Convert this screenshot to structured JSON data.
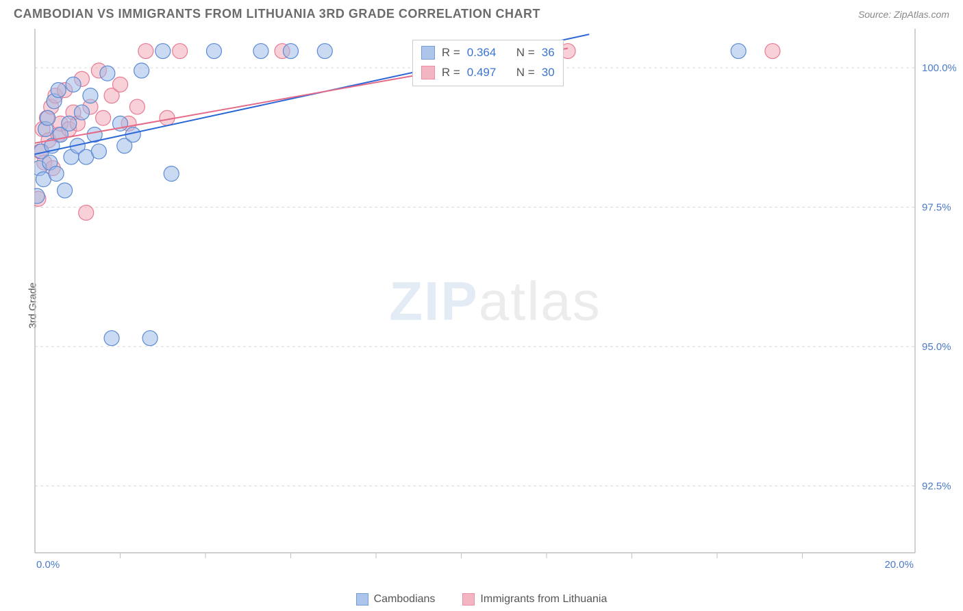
{
  "header": {
    "title": "CAMBODIAN VS IMMIGRANTS FROM LITHUANIA 3RD GRADE CORRELATION CHART",
    "source": "Source: ZipAtlas.com"
  },
  "axes": {
    "y_label": "3rd Grade",
    "x_min": 0.0,
    "x_max": 20.0,
    "y_min": 91.3,
    "y_max": 100.7,
    "x_ticks": [
      0.0,
      20.0
    ],
    "x_tick_labels": [
      "0.0%",
      "20.0%"
    ],
    "x_minor_ticks": [
      2,
      4,
      6,
      8,
      10,
      12,
      14,
      16,
      18
    ],
    "y_ticks": [
      92.5,
      95.0,
      97.5,
      100.0
    ],
    "y_tick_labels": [
      "92.5%",
      "95.0%",
      "97.5%",
      "100.0%"
    ],
    "tick_label_color": "#4a7bc8",
    "tick_label_fontsize": 15,
    "grid_color": "#d8d8d8",
    "axis_color": "#bfbfbf"
  },
  "series": {
    "cambodians": {
      "label": "Cambodians",
      "fill": "#9fbce8",
      "stroke": "#5b8bd4",
      "fill_opacity": 0.55,
      "points": [
        [
          0.05,
          97.7
        ],
        [
          0.1,
          98.2
        ],
        [
          0.15,
          98.5
        ],
        [
          0.2,
          98.0
        ],
        [
          0.25,
          98.9
        ],
        [
          0.3,
          99.1
        ],
        [
          0.35,
          98.3
        ],
        [
          0.4,
          98.6
        ],
        [
          0.45,
          99.4
        ],
        [
          0.5,
          98.1
        ],
        [
          0.55,
          99.6
        ],
        [
          0.6,
          98.8
        ],
        [
          0.7,
          97.8
        ],
        [
          0.8,
          99.0
        ],
        [
          0.85,
          98.4
        ],
        [
          0.9,
          99.7
        ],
        [
          1.0,
          98.6
        ],
        [
          1.1,
          99.2
        ],
        [
          1.2,
          98.4
        ],
        [
          1.3,
          99.5
        ],
        [
          1.4,
          98.8
        ],
        [
          1.5,
          98.5
        ],
        [
          1.7,
          99.9
        ],
        [
          1.8,
          95.15
        ],
        [
          2.0,
          99.0
        ],
        [
          2.1,
          98.6
        ],
        [
          2.3,
          98.8
        ],
        [
          2.5,
          99.95
        ],
        [
          2.7,
          95.15
        ],
        [
          3.0,
          100.3
        ],
        [
          3.2,
          98.1
        ],
        [
          4.2,
          100.3
        ],
        [
          5.3,
          100.3
        ],
        [
          6.0,
          100.3
        ],
        [
          6.8,
          100.3
        ],
        [
          16.5,
          100.3
        ]
      ],
      "marker_r": 11,
      "trend": {
        "x1": 0.0,
        "y1": 98.45,
        "x2": 13.0,
        "y2": 100.6,
        "color": "#2b67d6",
        "width": 2
      },
      "R": 0.364,
      "N": 36
    },
    "lithuania": {
      "label": "Immigrants from Lithuania",
      "fill": "#f2a9b8",
      "stroke": "#e97a93",
      "fill_opacity": 0.55,
      "points": [
        [
          0.08,
          97.65
        ],
        [
          0.12,
          98.5
        ],
        [
          0.18,
          98.9
        ],
        [
          0.22,
          98.3
        ],
        [
          0.28,
          99.1
        ],
        [
          0.32,
          98.7
        ],
        [
          0.38,
          99.3
        ],
        [
          0.42,
          98.2
        ],
        [
          0.48,
          99.5
        ],
        [
          0.55,
          98.8
        ],
        [
          0.6,
          99.0
        ],
        [
          0.7,
          99.6
        ],
        [
          0.8,
          98.9
        ],
        [
          0.9,
          99.2
        ],
        [
          1.0,
          99.0
        ],
        [
          1.1,
          99.8
        ],
        [
          1.2,
          97.4
        ],
        [
          1.3,
          99.3
        ],
        [
          1.5,
          99.95
        ],
        [
          1.6,
          99.1
        ],
        [
          1.8,
          99.5
        ],
        [
          2.0,
          99.7
        ],
        [
          2.2,
          99.0
        ],
        [
          2.4,
          99.3
        ],
        [
          2.6,
          100.3
        ],
        [
          3.1,
          99.1
        ],
        [
          3.4,
          100.3
        ],
        [
          5.8,
          100.3
        ],
        [
          12.5,
          100.3
        ],
        [
          17.3,
          100.3
        ]
      ],
      "marker_r": 11,
      "trend": {
        "x1": 0.0,
        "y1": 98.65,
        "x2": 12.5,
        "y2": 100.35,
        "color": "#e46b87",
        "width": 2
      },
      "R": 0.497,
      "N": 30
    }
  },
  "statbox": {
    "left_pct": 41.0,
    "top_pct": 2.0
  },
  "legend": {
    "items": [
      {
        "key": "cambodians"
      },
      {
        "key": "lithuania"
      }
    ]
  },
  "watermark": {
    "zip": "ZIP",
    "atlas": "atlas"
  },
  "background_color": "#ffffff"
}
